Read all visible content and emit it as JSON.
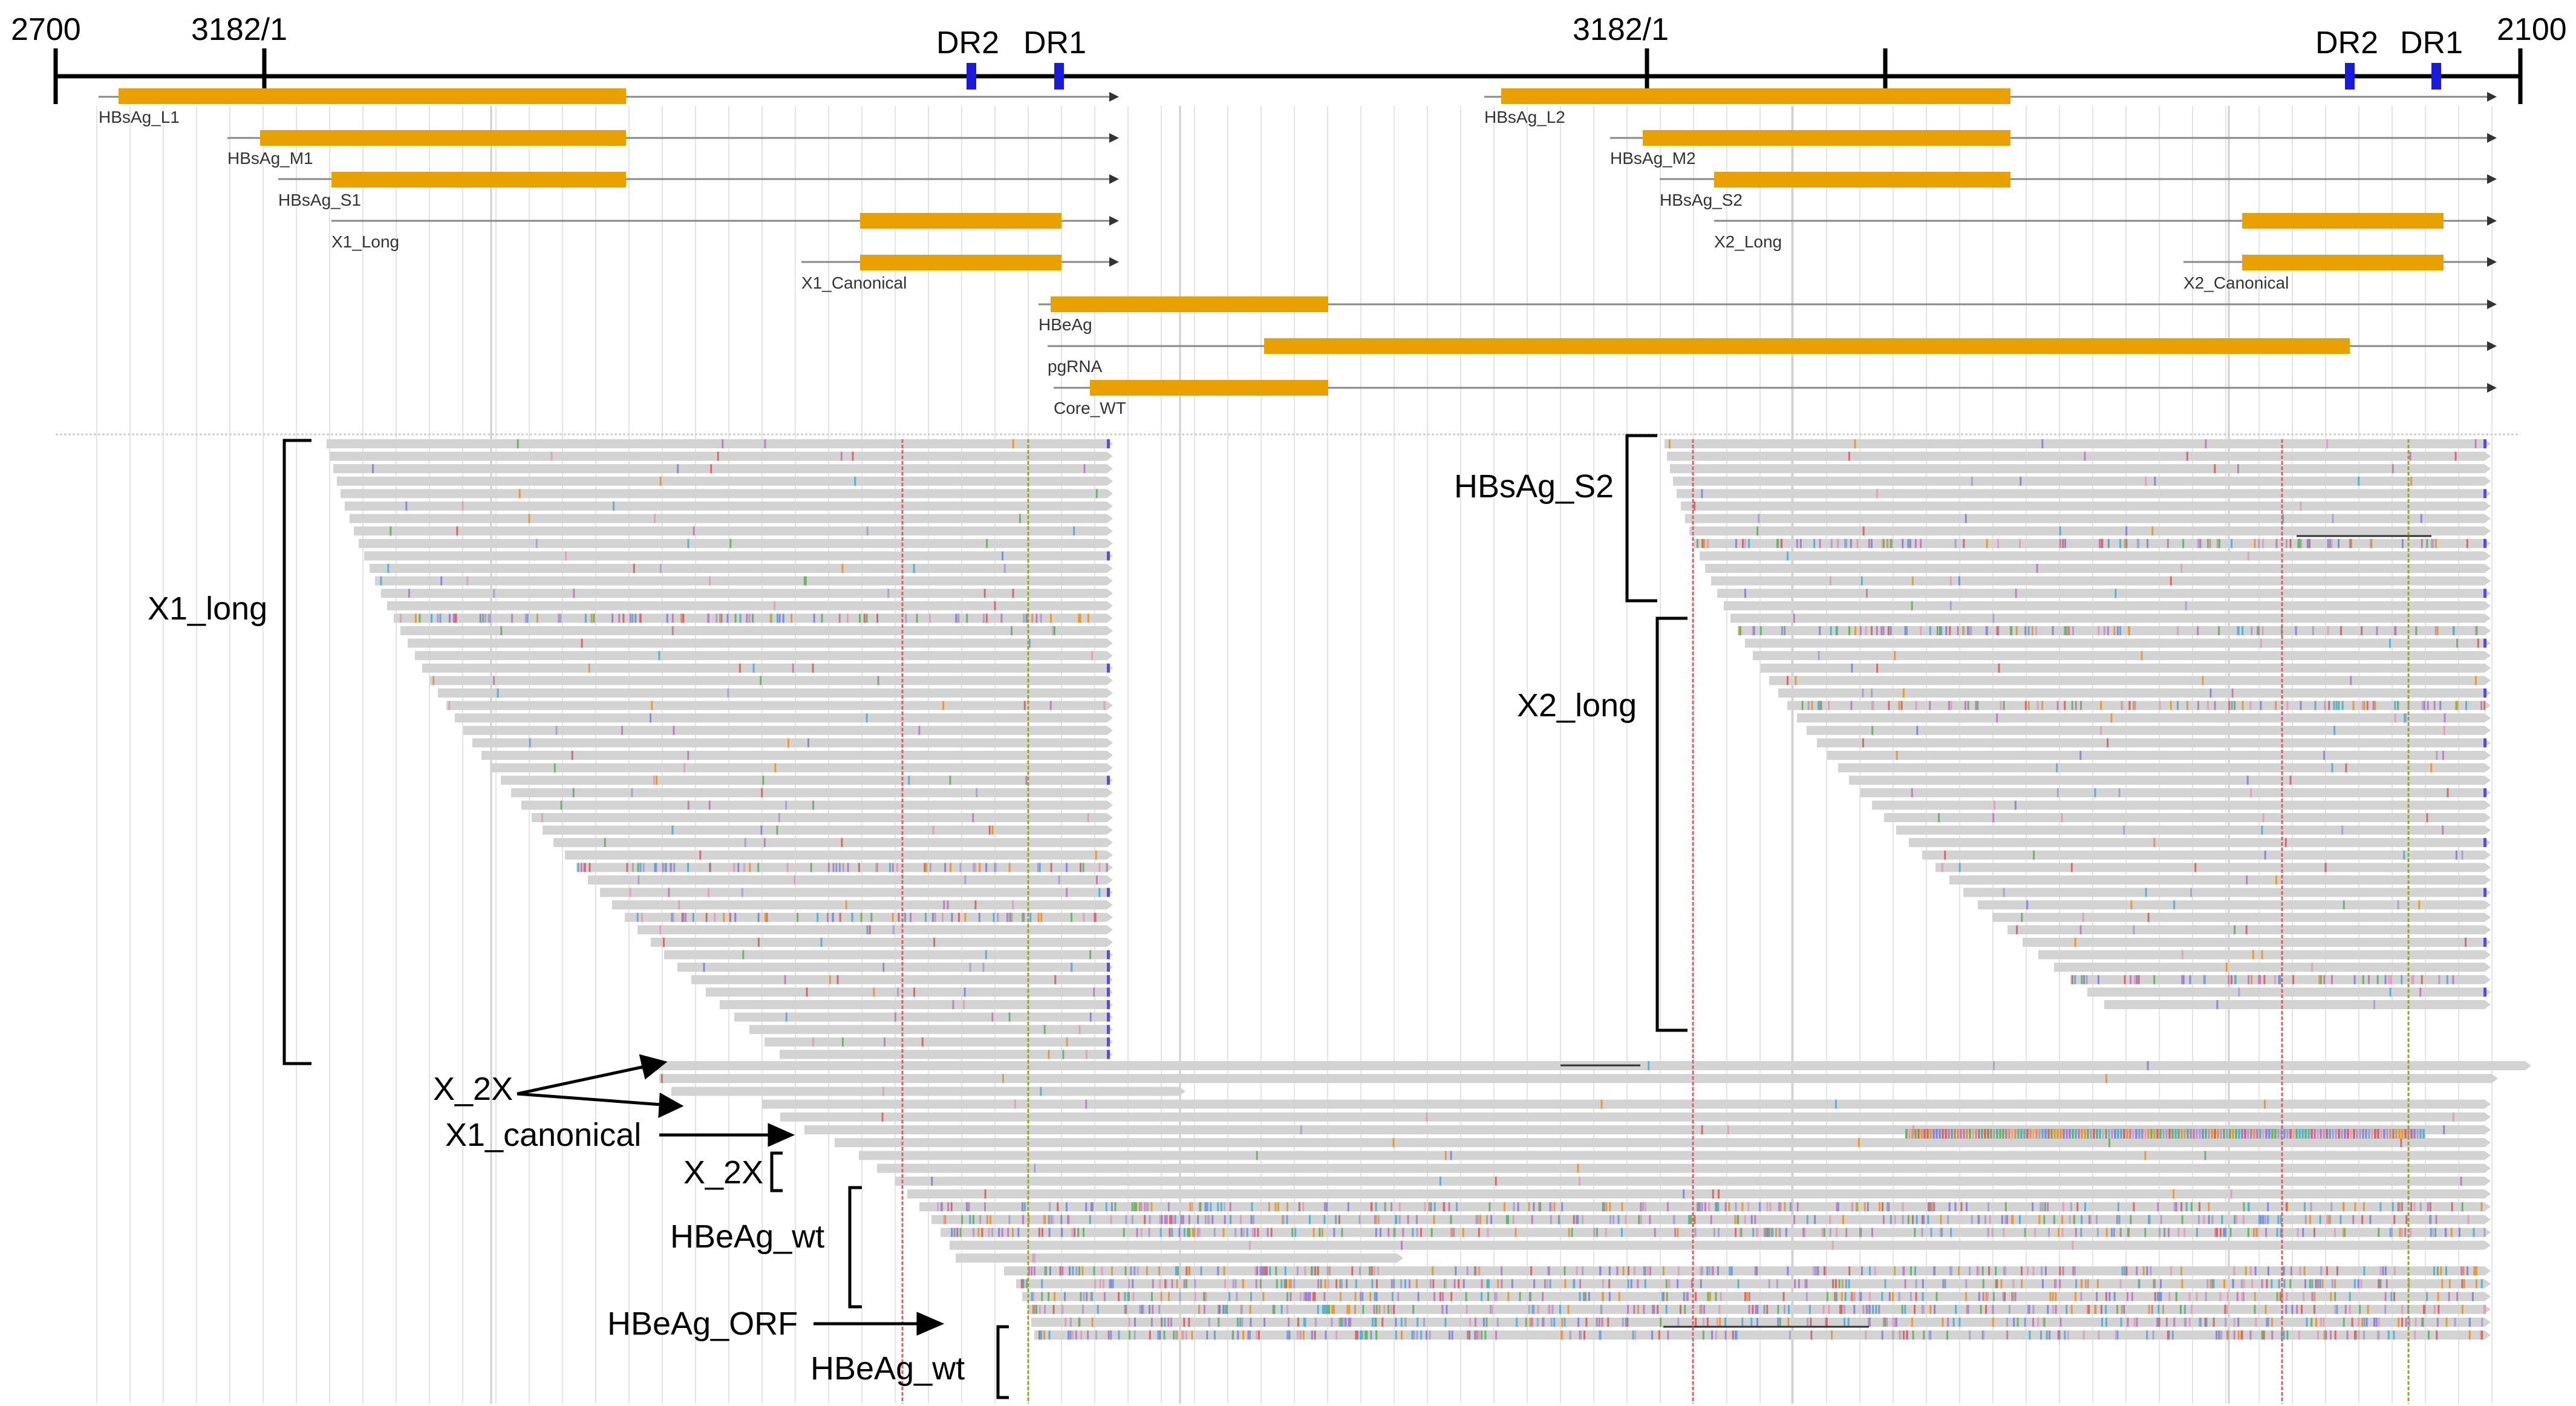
{
  "axis": {
    "start_label": "2700",
    "end_label": "2100",
    "junction_left_label": "3182/1",
    "junction_right_label": "3182/1",
    "dr2_left_label": "DR2",
    "dr1_left_label": "DR1",
    "dr2_right_label": "DR2",
    "dr1_right_label": "DR1"
  },
  "transcripts": [
    {
      "name": "HBsAg_L1",
      "label": "HBsAg_L1"
    },
    {
      "name": "HBsAg_M1",
      "label": "HBsAg_M1"
    },
    {
      "name": "HBsAg_S1",
      "label": "HBsAg_S1"
    },
    {
      "name": "X1_Long",
      "label": "X1_Long"
    },
    {
      "name": "X1_Canonical",
      "label": "X1_Canonical"
    },
    {
      "name": "HBsAg_L2",
      "label": "HBsAg_L2"
    },
    {
      "name": "HBsAg_M2",
      "label": "HBsAg_M2"
    },
    {
      "name": "HBsAg_S2",
      "label": "HBsAg_S2"
    },
    {
      "name": "X2_Long",
      "label": "X2_Long"
    },
    {
      "name": "X2_Canonical",
      "label": "X2_Canonical"
    },
    {
      "name": "HBeAg",
      "label": "HBeAg"
    },
    {
      "name": "pgRNA",
      "label": "pgRNA"
    },
    {
      "name": "Core_WT",
      "label": "Core_WT"
    }
  ],
  "groups": {
    "x1_long": "X1_long",
    "x_2x_a": "X_2X",
    "x1_canonical": "X1_canonical",
    "x_2x_b": "X_2X",
    "hbeag_wt_a": "HBeAg_wt",
    "hbeag_orf": "HBeAg_ORF",
    "hbeag_wt_b": "HBeAg_wt",
    "hbsag_s2": "HBsAg_S2",
    "x2_long": "X2_long"
  },
  "colors": {
    "axis": "#000000",
    "exon": "#e8a100",
    "intron": "#888888",
    "read": "#d3d3d3",
    "dr_marker": "#1a1adb",
    "grid": "#e4e4e4",
    "grid_strong": "#cfcfcf",
    "mismatch_red": "#e06060",
    "mismatch_olive": "#a0a030",
    "read_end": "#5a4cd8"
  }
}
